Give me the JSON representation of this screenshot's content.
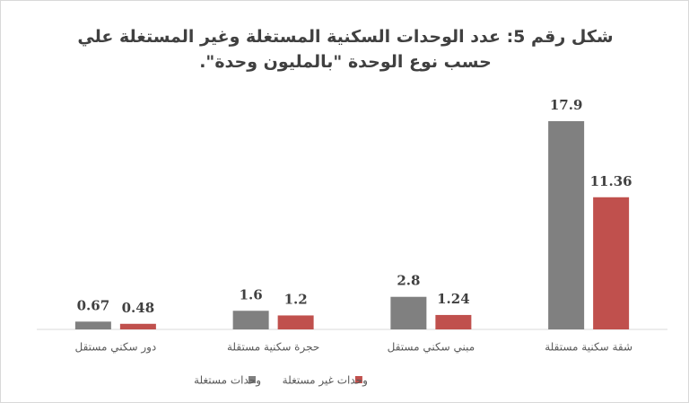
{
  "chart_data": {
    "type": "bar",
    "title": "شكل رقم 5: عدد الوحدات السكنية المستغلة وغير المستغلة علي حسب نوع الوحدة \"بالمليون وحدة\".",
    "categories": [
      "دور سكني مستقل",
      "حجرة سكنية مستقلة",
      "مبني سكني مستقل",
      "شقة سكنية مستقلة"
    ],
    "series": [
      {
        "name": "وحدات مستغلة",
        "color": "#808080",
        "values": [
          0.67,
          1.6,
          2.8,
          17.9
        ]
      },
      {
        "name": "وحدات غير مستغلة",
        "color": "#c0504d",
        "values": [
          0.48,
          1.2,
          1.24,
          11.36
        ]
      }
    ]
  }
}
